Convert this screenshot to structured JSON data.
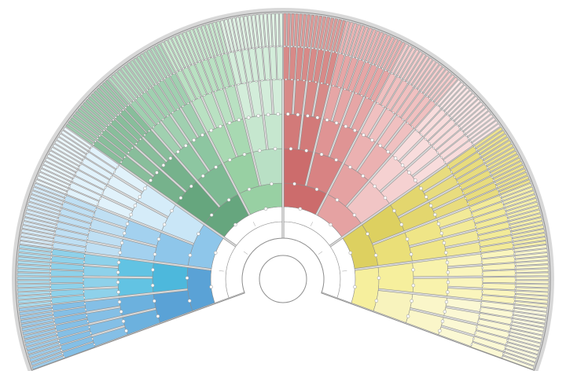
{
  "fan": {
    "generations": 9,
    "span_degrees": 220,
    "outer_boundary_fill": "#d8d8d8",
    "outline_color": "#8e8e8e",
    "center_fill": "#ffffff",
    "branches": [
      {
        "name": "paternal-paternal-paternal",
        "shades": [
          "#5aa2d6",
          "#6cb1de",
          "#84bfe6",
          "#9dcbe9"
        ]
      },
      {
        "name": "paternal-paternal-maternal",
        "shades": [
          "#4db8dc",
          "#62c3e3",
          "#8ed1ea",
          "#aadcef"
        ]
      },
      {
        "name": "paternal-maternal-paternal",
        "shades": [
          "#8ec6ea",
          "#a3d1ef",
          "#bfdff3",
          "#d5eaf7"
        ]
      },
      {
        "name": "paternal-maternal-maternal",
        "shades": [
          "#c9e6f7",
          "#d5ecf9",
          "#e1f2fb",
          "#ebf7fd"
        ]
      },
      {
        "name": "maternal-paternal-paternal",
        "shades": [
          "#66a67e",
          "#76b28c",
          "#88be9b",
          "#9cc9ac"
        ]
      },
      {
        "name": "maternal-paternal-maternal",
        "shades": [
          "#7dba93",
          "#8dc6a1",
          "#a0d0b0",
          "#b3dac0"
        ]
      },
      {
        "name": "maternal-maternal-paternal",
        "shades": [
          "#98d0a3",
          "#a8d9b2",
          "#b9e1c2",
          "#c9e9d0"
        ]
      },
      {
        "name": "maternal-maternal-maternal",
        "shades": [
          "#b9e0c5",
          "#c6e7cf",
          "#d3edda",
          "#e0f3e5"
        ]
      },
      {
        "name": "paternal-paternal-paternal-2",
        "shades": [
          "#cc6c6c",
          "#d27a79",
          "#d88a88",
          "#de9a98"
        ]
      },
      {
        "name": "paternal-paternal-maternal-2",
        "shades": [
          "#d88383",
          "#df9494",
          "#e6a6a6",
          "#ecb5b5"
        ]
      },
      {
        "name": "paternal-maternal-paternal-2",
        "shades": [
          "#e5a2a2",
          "#ebb1b1",
          "#f0c0c0",
          "#f4cdcd"
        ]
      },
      {
        "name": "paternal-maternal-maternal-2",
        "shades": [
          "#f1c5c5",
          "#f5d1d1",
          "#f8dcdc",
          "#fbe6e6"
        ]
      },
      {
        "name": "maternal-paternal-paternal-2",
        "shades": [
          "#ddd060",
          "#e3d66e",
          "#e8dc7e",
          "#ede28f"
        ]
      },
      {
        "name": "maternal-paternal-maternal-2",
        "shades": [
          "#eadf78",
          "#efe587",
          "#f2ea98",
          "#f5efab"
        ]
      },
      {
        "name": "maternal-maternal-paternal-2",
        "shades": [
          "#f6ef9d",
          "#f8f2ac",
          "#faf5bd",
          "#fbf7cb"
        ]
      },
      {
        "name": "maternal-maternal-maternal-2",
        "shades": [
          "#f8f3bd",
          "#faf6c9",
          "#fbf8d4",
          "#fcfadf"
        ]
      }
    ]
  }
}
